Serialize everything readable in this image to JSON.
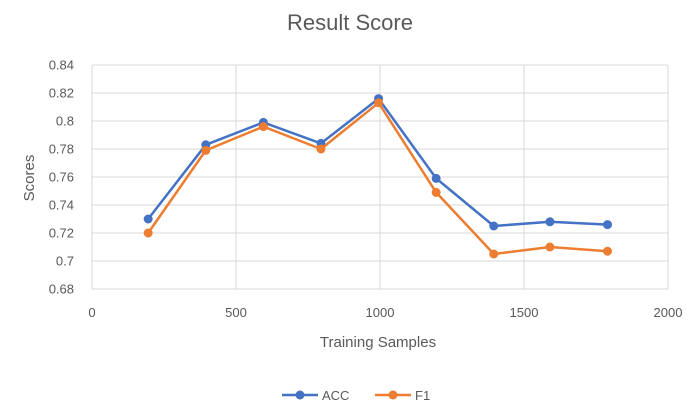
{
  "chart_data": {
    "type": "scatter",
    "title": "Result Score",
    "xlabel": "Training Samples",
    "ylabel": "Scores",
    "xlim": [
      0,
      2000
    ],
    "ylim": [
      0.68,
      0.84
    ],
    "x_ticks": [
      "0",
      "500",
      "1000",
      "1500",
      "2000"
    ],
    "y_ticks": [
      "0.68",
      "0.7",
      "0.72",
      "0.74",
      "0.76",
      "0.78",
      "0.8",
      "0.82",
      "0.84"
    ],
    "grid": true,
    "legend_position": "bottom",
    "series": [
      {
        "name": "ACC",
        "color": "#4472c4",
        "x": [
          195,
          395,
          595,
          795,
          995,
          1195,
          1395,
          1590,
          1790
        ],
        "y": [
          0.73,
          0.783,
          0.799,
          0.784,
          0.816,
          0.759,
          0.725,
          0.728,
          0.726
        ]
      },
      {
        "name": "F1",
        "color": "#ed7d31",
        "x": [
          195,
          395,
          595,
          795,
          995,
          1195,
          1395,
          1590,
          1790
        ],
        "y": [
          0.72,
          0.779,
          0.796,
          0.78,
          0.813,
          0.749,
          0.705,
          0.71,
          0.707
        ]
      }
    ]
  }
}
